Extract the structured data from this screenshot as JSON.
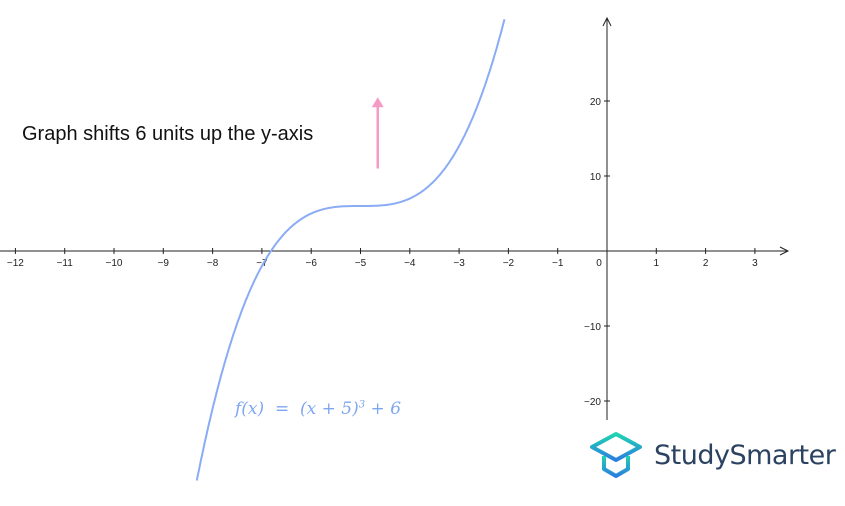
{
  "chart_data": {
    "type": "line",
    "title": "",
    "xlabel": "",
    "ylabel": "",
    "xlim": [
      -12.3,
      3.7
    ],
    "ylim": [
      -22.5,
      31
    ],
    "x_ticks": [
      -12,
      -11,
      -10,
      -9,
      -8,
      -7,
      -6,
      -5,
      -4,
      -3,
      -2,
      -1,
      0,
      1,
      2,
      3
    ],
    "y_ticks": [
      -20,
      -10,
      10,
      20
    ],
    "grid": false,
    "series": [
      {
        "function": "(x+5)^3+6",
        "x_range": [
          -8.32,
          -2.08
        ],
        "color": "#8aacf5"
      }
    ],
    "annotation": {
      "text": "Graph shifts 6 units up the y-axis",
      "arrow": {
        "x": -4.65,
        "y_from": 11,
        "y_to": 20.5,
        "color": "#f59ac4"
      }
    },
    "function_label": {
      "lhs": "f(x)",
      "eq": "=",
      "rhs": "(x + 5)",
      "exp": "3",
      "tail": "+ 6"
    }
  },
  "logo": {
    "text": "StudySmarter",
    "colors": [
      "#1fd4b0",
      "#2a7fe0"
    ]
  }
}
